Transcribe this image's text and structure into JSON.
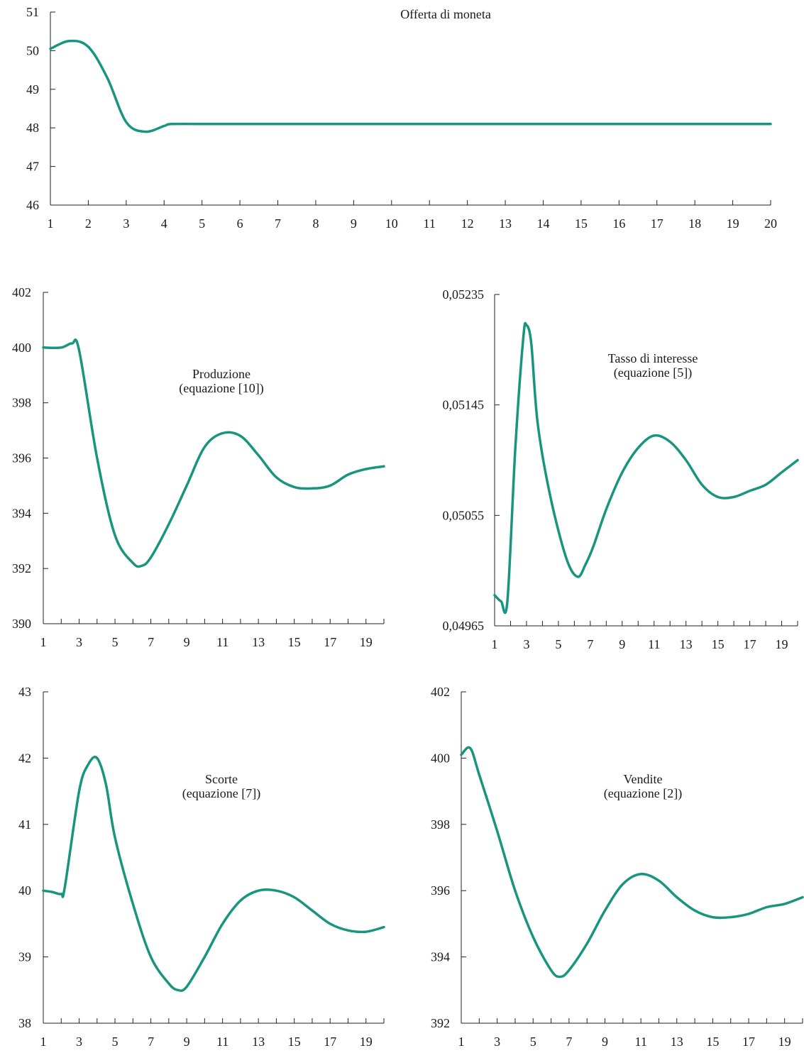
{
  "colors": {
    "series": "#17957f",
    "axis": "#222222",
    "text": "#1a1a1a"
  },
  "chart_data": [
    {
      "id": "money",
      "type": "line",
      "title": [
        "Offerta di moneta"
      ],
      "x": [
        1,
        1.5,
        2,
        2.5,
        3,
        3.5,
        4,
        4.2,
        5,
        6,
        7,
        8,
        9,
        10,
        11,
        12,
        13,
        14,
        15,
        16,
        17,
        18,
        19,
        20
      ],
      "values": [
        50.05,
        50.25,
        50.1,
        49.3,
        48.15,
        47.9,
        48.05,
        48.1,
        48.1,
        48.1,
        48.1,
        48.1,
        48.1,
        48.1,
        48.1,
        48.1,
        48.1,
        48.1,
        48.1,
        48.1,
        48.1,
        48.1,
        48.1,
        48.1
      ],
      "xlim": [
        1,
        20
      ],
      "ylim": [
        46,
        51
      ],
      "yticks": [
        "46",
        "47",
        "48",
        "49",
        "50",
        "51"
      ],
      "xticks": [
        "1",
        "2",
        "3",
        "4",
        "5",
        "6",
        "7",
        "8",
        "9",
        "10",
        "11",
        "12",
        "13",
        "14",
        "15",
        "16",
        "17",
        "18",
        "19",
        "20"
      ],
      "xtick_positions": [
        1,
        2,
        3,
        4,
        5,
        6,
        7,
        8,
        9,
        10,
        11,
        12,
        13,
        14,
        15,
        16,
        17,
        18,
        19,
        20
      ]
    },
    {
      "id": "prod",
      "type": "line",
      "title": [
        "Produzione",
        "(equazione [10])"
      ],
      "x": [
        1,
        2,
        2.6,
        3,
        4,
        5,
        6,
        6.5,
        7,
        8,
        9,
        10,
        11,
        12,
        13,
        14,
        15,
        16,
        17,
        18,
        19,
        20
      ],
      "values": [
        400,
        400,
        400.15,
        399.9,
        396,
        393.2,
        392.2,
        392.1,
        392.4,
        393.6,
        395,
        396.4,
        396.9,
        396.8,
        396.1,
        395.3,
        394.95,
        394.9,
        395.0,
        395.4,
        395.6,
        395.7
      ],
      "xlim": [
        1,
        20
      ],
      "ylim": [
        390,
        402
      ],
      "yticks": [
        "390",
        "392",
        "394",
        "396",
        "398",
        "400",
        "402"
      ],
      "xticks": [
        "1",
        "3",
        "5",
        "7",
        "9",
        "11",
        "13",
        "15",
        "17",
        "19"
      ],
      "xtick_positions": [
        1,
        3,
        5,
        7,
        9,
        11,
        13,
        15,
        17,
        19
      ]
    },
    {
      "id": "tasso",
      "type": "line",
      "title": [
        "Tasso di interesse",
        "(equazione [5])"
      ],
      "x": [
        1,
        1.4,
        1.8,
        2.3,
        2.8,
        3,
        3.3,
        3.7,
        4.5,
        5.5,
        6.2,
        6.7,
        7.2,
        8,
        9,
        10,
        11,
        12,
        13,
        14,
        15,
        16,
        17,
        18,
        19,
        20
      ],
      "values": [
        0.0499,
        0.04985,
        0.04985,
        0.0511,
        0.052,
        0.0521,
        0.05195,
        0.0513,
        0.0507,
        0.0502,
        0.05005,
        0.05015,
        0.0503,
        0.0506,
        0.0509,
        0.0511,
        0.0512,
        0.05115,
        0.051,
        0.0508,
        0.0507,
        0.0507,
        0.05075,
        0.0508,
        0.0509,
        0.051
      ],
      "xlim": [
        1,
        20
      ],
      "ylim": [
        0.04965,
        0.05235
      ],
      "yticks": [
        "0,04965",
        "0,05055",
        "0,05145",
        "0,05235"
      ],
      "ytick_values": [
        0.04965,
        0.05055,
        0.05145,
        0.05235
      ],
      "xticks": [
        "1",
        "3",
        "5",
        "7",
        "9",
        "11",
        "13",
        "15",
        "17",
        "19"
      ],
      "xtick_positions": [
        1,
        3,
        5,
        7,
        9,
        11,
        13,
        15,
        17,
        19
      ]
    },
    {
      "id": "scorte",
      "type": "line",
      "title": [
        "Scorte",
        "(equazione [7])"
      ],
      "x": [
        1,
        1.5,
        2,
        2.2,
        3,
        3.5,
        4,
        4.5,
        5,
        6,
        7,
        8,
        8.5,
        9,
        10,
        11,
        12,
        13,
        14,
        15,
        16,
        17,
        18,
        19,
        20
      ],
      "values": [
        40,
        39.98,
        39.95,
        40.05,
        41.5,
        41.9,
        42,
        41.6,
        40.8,
        39.8,
        39.0,
        38.6,
        38.5,
        38.55,
        39.0,
        39.5,
        39.85,
        40.0,
        40.0,
        39.9,
        39.7,
        39.5,
        39.4,
        39.38,
        39.45
      ],
      "xlim": [
        1,
        20
      ],
      "ylim": [
        38,
        43
      ],
      "yticks": [
        "38",
        "39",
        "40",
        "41",
        "42",
        "43"
      ],
      "xticks": [
        "1",
        "3",
        "5",
        "7",
        "9",
        "11",
        "13",
        "15",
        "17",
        "19"
      ],
      "xtick_positions": [
        1,
        3,
        5,
        7,
        9,
        11,
        13,
        15,
        17,
        19
      ]
    },
    {
      "id": "vendite",
      "type": "line",
      "title": [
        "Vendite",
        "(equazione [2])"
      ],
      "x": [
        1,
        1.5,
        2,
        3,
        4,
        5,
        6,
        6.5,
        7,
        8,
        9,
        10,
        11,
        12,
        13,
        14,
        15,
        16,
        17,
        18,
        19,
        20
      ],
      "values": [
        400.1,
        400.3,
        399.5,
        397.8,
        396,
        394.6,
        393.6,
        393.4,
        393.6,
        394.4,
        395.4,
        396.2,
        396.5,
        396.3,
        395.8,
        395.4,
        395.2,
        395.2,
        395.3,
        395.5,
        395.6,
        395.8
      ],
      "xlim": [
        1,
        20
      ],
      "ylim": [
        392,
        402
      ],
      "yticks": [
        "392",
        "394",
        "396",
        "398",
        "400",
        "402"
      ],
      "xticks": [
        "1",
        "3",
        "5",
        "7",
        "9",
        "11",
        "13",
        "15",
        "17",
        "19"
      ],
      "xtick_positions": [
        1,
        3,
        5,
        7,
        9,
        11,
        13,
        15,
        17,
        19
      ]
    }
  ]
}
